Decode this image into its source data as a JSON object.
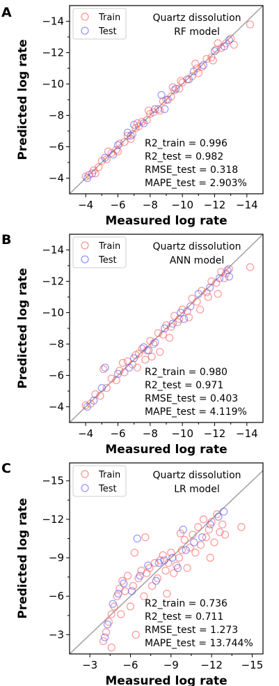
{
  "chart_data": [
    {
      "type": "scatter",
      "panel_letter": "A",
      "title": "Quartz dissolution",
      "subtitle": "RF model",
      "xlabel": "Measured log rate",
      "ylabel": "Predicted log rate",
      "xlim": [
        -3,
        -15
      ],
      "ylim": [
        -3,
        -15
      ],
      "xticks": [
        "−4",
        "−6",
        "−8",
        "−10",
        "−12",
        "−14"
      ],
      "yticks": [
        "−4",
        "−6",
        "−8",
        "−10",
        "−12",
        "−14"
      ],
      "xtick_values": [
        -4,
        -6,
        -8,
        -10,
        -12,
        -14
      ],
      "ytick_values": [
        -4,
        -6,
        -8,
        -10,
        -12,
        -14
      ],
      "legend": [
        "Train",
        "Test"
      ],
      "legend_position": "top-left",
      "identity_line": true,
      "metrics": [
        "R2_train = 0.996",
        "R2_test = 0.982",
        "RMSE_test = 0.318",
        "MAPE_test = 2.903%"
      ],
      "series": [
        {
          "name": "Train",
          "color": "#ff4d4d",
          "points": [
            [
              -4.0,
              -4.1
            ],
            [
              -4.2,
              -4.2
            ],
            [
              -4.5,
              -4.5
            ],
            [
              -4.8,
              -4.7
            ],
            [
              -5.0,
              -5.1
            ],
            [
              -5.3,
              -5.2
            ],
            [
              -5.6,
              -5.6
            ],
            [
              -5.9,
              -5.8
            ],
            [
              -6.1,
              -6.2
            ],
            [
              -6.4,
              -6.3
            ],
            [
              -6.6,
              -6.7
            ],
            [
              -6.9,
              -6.8
            ],
            [
              -7.1,
              -7.2
            ],
            [
              -7.3,
              -7.3
            ],
            [
              -7.5,
              -7.6
            ],
            [
              -7.8,
              -7.7
            ],
            [
              -8.0,
              -8.1
            ],
            [
              -8.2,
              -8.2
            ],
            [
              -8.5,
              -8.4
            ],
            [
              -8.8,
              -8.9
            ],
            [
              -9.0,
              -9.0
            ],
            [
              -9.3,
              -9.2
            ],
            [
              -9.5,
              -9.6
            ],
            [
              -9.8,
              -9.7
            ],
            [
              -10.0,
              -10.1
            ],
            [
              -10.3,
              -10.3
            ],
            [
              -10.6,
              -10.5
            ],
            [
              -10.9,
              -11.0
            ],
            [
              -11.2,
              -11.1
            ],
            [
              -11.5,
              -11.6
            ],
            [
              -11.8,
              -11.7
            ],
            [
              -12.1,
              -12.2
            ],
            [
              -12.4,
              -12.3
            ],
            [
              -12.7,
              -12.6
            ],
            [
              -13.0,
              -12.9
            ],
            [
              -13.2,
              -12.5
            ],
            [
              -14.2,
              -13.8
            ],
            [
              -6.0,
              -5.7
            ],
            [
              -7.2,
              -7.5
            ],
            [
              -8.6,
              -8.3
            ],
            [
              -9.9,
              -10.2
            ],
            [
              -11.0,
              -10.7
            ],
            [
              -12.2,
              -12.6
            ],
            [
              -5.4,
              -5.7
            ],
            [
              -6.8,
              -6.5
            ],
            [
              -9.4,
              -9.8
            ],
            [
              -10.8,
              -11.3
            ],
            [
              -11.9,
              -11.5
            ],
            [
              -4.6,
              -4.3
            ],
            [
              -7.9,
              -8.3
            ]
          ]
        },
        {
          "name": "Test",
          "color": "#4d4dff",
          "points": [
            [
              -4.1,
              -4.0
            ],
            [
              -4.4,
              -4.3
            ],
            [
              -5.2,
              -5.3
            ],
            [
              -6.0,
              -6.1
            ],
            [
              -6.8,
              -6.7
            ],
            [
              -7.0,
              -7.4
            ],
            [
              -7.6,
              -7.5
            ],
            [
              -8.3,
              -8.4
            ],
            [
              -8.7,
              -9.3
            ],
            [
              -9.1,
              -9.0
            ],
            [
              -9.6,
              -9.7
            ],
            [
              -10.4,
              -10.3
            ],
            [
              -10.7,
              -10.8
            ],
            [
              -11.3,
              -11.2
            ],
            [
              -12.0,
              -12.1
            ],
            [
              -12.6,
              -12.4
            ],
            [
              -12.9,
              -12.8
            ],
            [
              -6.6,
              -6.9
            ],
            [
              -5.7,
              -5.5
            ],
            [
              -8.9,
              -8.4
            ]
          ]
        }
      ]
    },
    {
      "type": "scatter",
      "panel_letter": "B",
      "title": "Quartz dissolution",
      "subtitle": "ANN model",
      "xlabel": "Measured log rate",
      "ylabel": "Predicted log rate",
      "xlim": [
        -3,
        -15
      ],
      "ylim": [
        -3,
        -15
      ],
      "xticks": [
        "−4",
        "−6",
        "−8",
        "−10",
        "−12",
        "−14"
      ],
      "yticks": [
        "−4",
        "−6",
        "−8",
        "−10",
        "−12",
        "−14"
      ],
      "xtick_values": [
        -4,
        -6,
        -8,
        -10,
        -12,
        -14
      ],
      "ytick_values": [
        -4,
        -6,
        -8,
        -10,
        -12,
        -14
      ],
      "legend": [
        "Train",
        "Test"
      ],
      "legend_position": "top-left",
      "identity_line": true,
      "metrics": [
        "R2_train = 0.980",
        "R2_test = 0.971",
        "RMSE_test = 0.403",
        "MAPE_test = 4.119%"
      ],
      "series": [
        {
          "name": "Train",
          "color": "#ff4d4d",
          "points": [
            [
              -4.0,
              -4.1
            ],
            [
              -4.3,
              -4.2
            ],
            [
              -4.6,
              -4.8
            ],
            [
              -4.9,
              -4.7
            ],
            [
              -5.1,
              -6.4
            ],
            [
              -5.3,
              -5.2
            ],
            [
              -5.6,
              -5.8
            ],
            [
              -5.9,
              -5.7
            ],
            [
              -6.1,
              -6.3
            ],
            [
              -6.4,
              -6.2
            ],
            [
              -6.6,
              -6.9
            ],
            [
              -6.9,
              -6.7
            ],
            [
              -7.1,
              -7.3
            ],
            [
              -7.3,
              -7.4
            ],
            [
              -7.5,
              -7.7
            ],
            [
              -7.8,
              -7.6
            ],
            [
              -8.0,
              -8.2
            ],
            [
              -8.2,
              -8.0
            ],
            [
              -8.5,
              -8.7
            ],
            [
              -8.8,
              -8.6
            ],
            [
              -9.0,
              -9.2
            ],
            [
              -9.3,
              -9.1
            ],
            [
              -9.5,
              -9.8
            ],
            [
              -9.8,
              -9.6
            ],
            [
              -10.0,
              -10.2
            ],
            [
              -10.3,
              -10.1
            ],
            [
              -10.6,
              -10.9
            ],
            [
              -10.9,
              -10.7
            ],
            [
              -11.2,
              -11.4
            ],
            [
              -11.5,
              -11.3
            ],
            [
              -11.8,
              -12.0
            ],
            [
              -12.1,
              -11.9
            ],
            [
              -12.4,
              -12.6
            ],
            [
              -12.7,
              -12.5
            ],
            [
              -12.9,
              -12.8
            ],
            [
              -14.2,
              -12.9
            ],
            [
              -7.2,
              -6.5
            ],
            [
              -8.6,
              -7.5
            ],
            [
              -9.2,
              -8.4
            ],
            [
              -10.4,
              -9.7
            ],
            [
              -11.1,
              -10.2
            ],
            [
              -12.2,
              -11.2
            ],
            [
              -7.7,
              -7.0
            ],
            [
              -6.3,
              -6.8
            ],
            [
              -9.7,
              -9.4
            ],
            [
              -11.6,
              -11.0
            ],
            [
              -12.6,
              -12.2
            ],
            [
              -8.1,
              -7.2
            ]
          ]
        },
        {
          "name": "Test",
          "color": "#4d4dff",
          "points": [
            [
              -4.1,
              -4.0
            ],
            [
              -4.5,
              -4.4
            ],
            [
              -5.0,
              -5.2
            ],
            [
              -5.2,
              -6.5
            ],
            [
              -6.0,
              -6.1
            ],
            [
              -6.7,
              -6.5
            ],
            [
              -7.0,
              -7.1
            ],
            [
              -7.6,
              -7.8
            ],
            [
              -8.3,
              -8.1
            ],
            [
              -8.9,
              -9.0
            ],
            [
              -9.4,
              -9.3
            ],
            [
              -9.9,
              -10.0
            ],
            [
              -10.5,
              -10.4
            ],
            [
              -11.0,
              -11.2
            ],
            [
              -11.7,
              -11.6
            ],
            [
              -12.3,
              -12.2
            ],
            [
              -12.8,
              -12.7
            ],
            [
              -12.9,
              -12.3
            ],
            [
              -7.9,
              -7.6
            ],
            [
              -10.1,
              -9.6
            ]
          ]
        }
      ]
    },
    {
      "type": "scatter",
      "panel_letter": "C",
      "title": "Quartz dissolution",
      "subtitle": "LR model",
      "xlabel": "Measured log rate",
      "ylabel": "Predicted log rate",
      "xlim": [
        -1.5,
        -15.8
      ],
      "ylim": [
        -1.5,
        -16.4
      ],
      "xticks": [
        "−3",
        "−6",
        "−9",
        "−12",
        "−15"
      ],
      "yticks": [
        "−3",
        "−6",
        "−9",
        "−12",
        "−15"
      ],
      "xtick_values": [
        -3,
        -6,
        -9,
        -12,
        -15
      ],
      "ytick_values": [
        -3,
        -6,
        -9,
        -12,
        -15
      ],
      "legend": [
        "Train",
        "Test"
      ],
      "legend_position": "top-left",
      "identity_line": true,
      "metrics": [
        "R2_train = 0.736",
        "R2_test = 0.711",
        "RMSE_test = 1.273",
        "MAPE_test = 13.744%"
      ],
      "series": [
        {
          "name": "Train",
          "color": "#ff4d4d",
          "points": [
            [
              -4.0,
              -2.5
            ],
            [
              -4.2,
              -3.2
            ],
            [
              -4.4,
              -4.0
            ],
            [
              -4.6,
              -4.6
            ],
            [
              -4.8,
              -5.2
            ],
            [
              -5.0,
              -6.0
            ],
            [
              -5.2,
              -6.6
            ],
            [
              -5.4,
              -7.2
            ],
            [
              -5.6,
              -6.4
            ],
            [
              -5.8,
              -7.6
            ],
            [
              -6.0,
              -5.2
            ],
            [
              -6.2,
              -6.8
            ],
            [
              -6.4,
              -3.0
            ],
            [
              -6.6,
              -7.4
            ],
            [
              -6.8,
              -8.0
            ],
            [
              -7.0,
              -6.0
            ],
            [
              -7.2,
              -7.8
            ],
            [
              -7.4,
              -8.2
            ],
            [
              -7.6,
              -6.8
            ],
            [
              -7.8,
              -8.6
            ],
            [
              -8.0,
              -7.4
            ],
            [
              -8.2,
              -8.8
            ],
            [
              -8.4,
              -9.2
            ],
            [
              -8.6,
              -8.0
            ],
            [
              -8.8,
              -8.6
            ],
            [
              -9.0,
              -9.4
            ],
            [
              -9.2,
              -7.8
            ],
            [
              -9.4,
              -8.4
            ],
            [
              -9.6,
              -9.0
            ],
            [
              -9.8,
              -9.6
            ],
            [
              -10.0,
              -10.4
            ],
            [
              -10.2,
              -8.2
            ],
            [
              -10.4,
              -9.8
            ],
            [
              -10.6,
              -10.8
            ],
            [
              -10.8,
              -9.4
            ],
            [
              -11.0,
              -11.4
            ],
            [
              -11.2,
              -10.0
            ],
            [
              -11.4,
              -12.0
            ],
            [
              -11.6,
              -10.6
            ],
            [
              -11.8,
              -11.2
            ],
            [
              -12.0,
              -11.8
            ],
            [
              -12.2,
              -10.2
            ],
            [
              -12.4,
              -12.4
            ],
            [
              -12.6,
              -11.0
            ],
            [
              -12.8,
              -11.6
            ],
            [
              -13.0,
              -10.8
            ],
            [
              -14.2,
              -11.4
            ],
            [
              -6.3,
              -9.4
            ],
            [
              -7.1,
              -10.6
            ],
            [
              -5.3,
              -4.6
            ],
            [
              -4.6,
              -2.0
            ],
            [
              -8.7,
              -6.2
            ],
            [
              -9.7,
              -10.9
            ],
            [
              -11.9,
              -9.0
            ]
          ]
        },
        {
          "name": "Test",
          "color": "#4d4dff",
          "points": [
            [
              -4.1,
              -2.8
            ],
            [
              -4.3,
              -3.8
            ],
            [
              -4.7,
              -5.4
            ],
            [
              -5.1,
              -6.2
            ],
            [
              -5.5,
              -7.0
            ],
            [
              -6.1,
              -6.4
            ],
            [
              -6.7,
              -7.6
            ],
            [
              -7.3,
              -8.4
            ],
            [
              -7.9,
              -7.2
            ],
            [
              -8.5,
              -8.8
            ],
            [
              -9.1,
              -9.0
            ],
            [
              -9.5,
              -8.2
            ],
            [
              -10.1,
              -9.6
            ],
            [
              -10.7,
              -10.2
            ],
            [
              -11.3,
              -10.6
            ],
            [
              -11.9,
              -11.6
            ],
            [
              -12.5,
              -12.2
            ],
            [
              -12.9,
              -12.6
            ],
            [
              -6.5,
              -10.5
            ],
            [
              -8.1,
              -8.6
            ],
            [
              -9.9,
              -11.2
            ]
          ]
        }
      ]
    }
  ]
}
